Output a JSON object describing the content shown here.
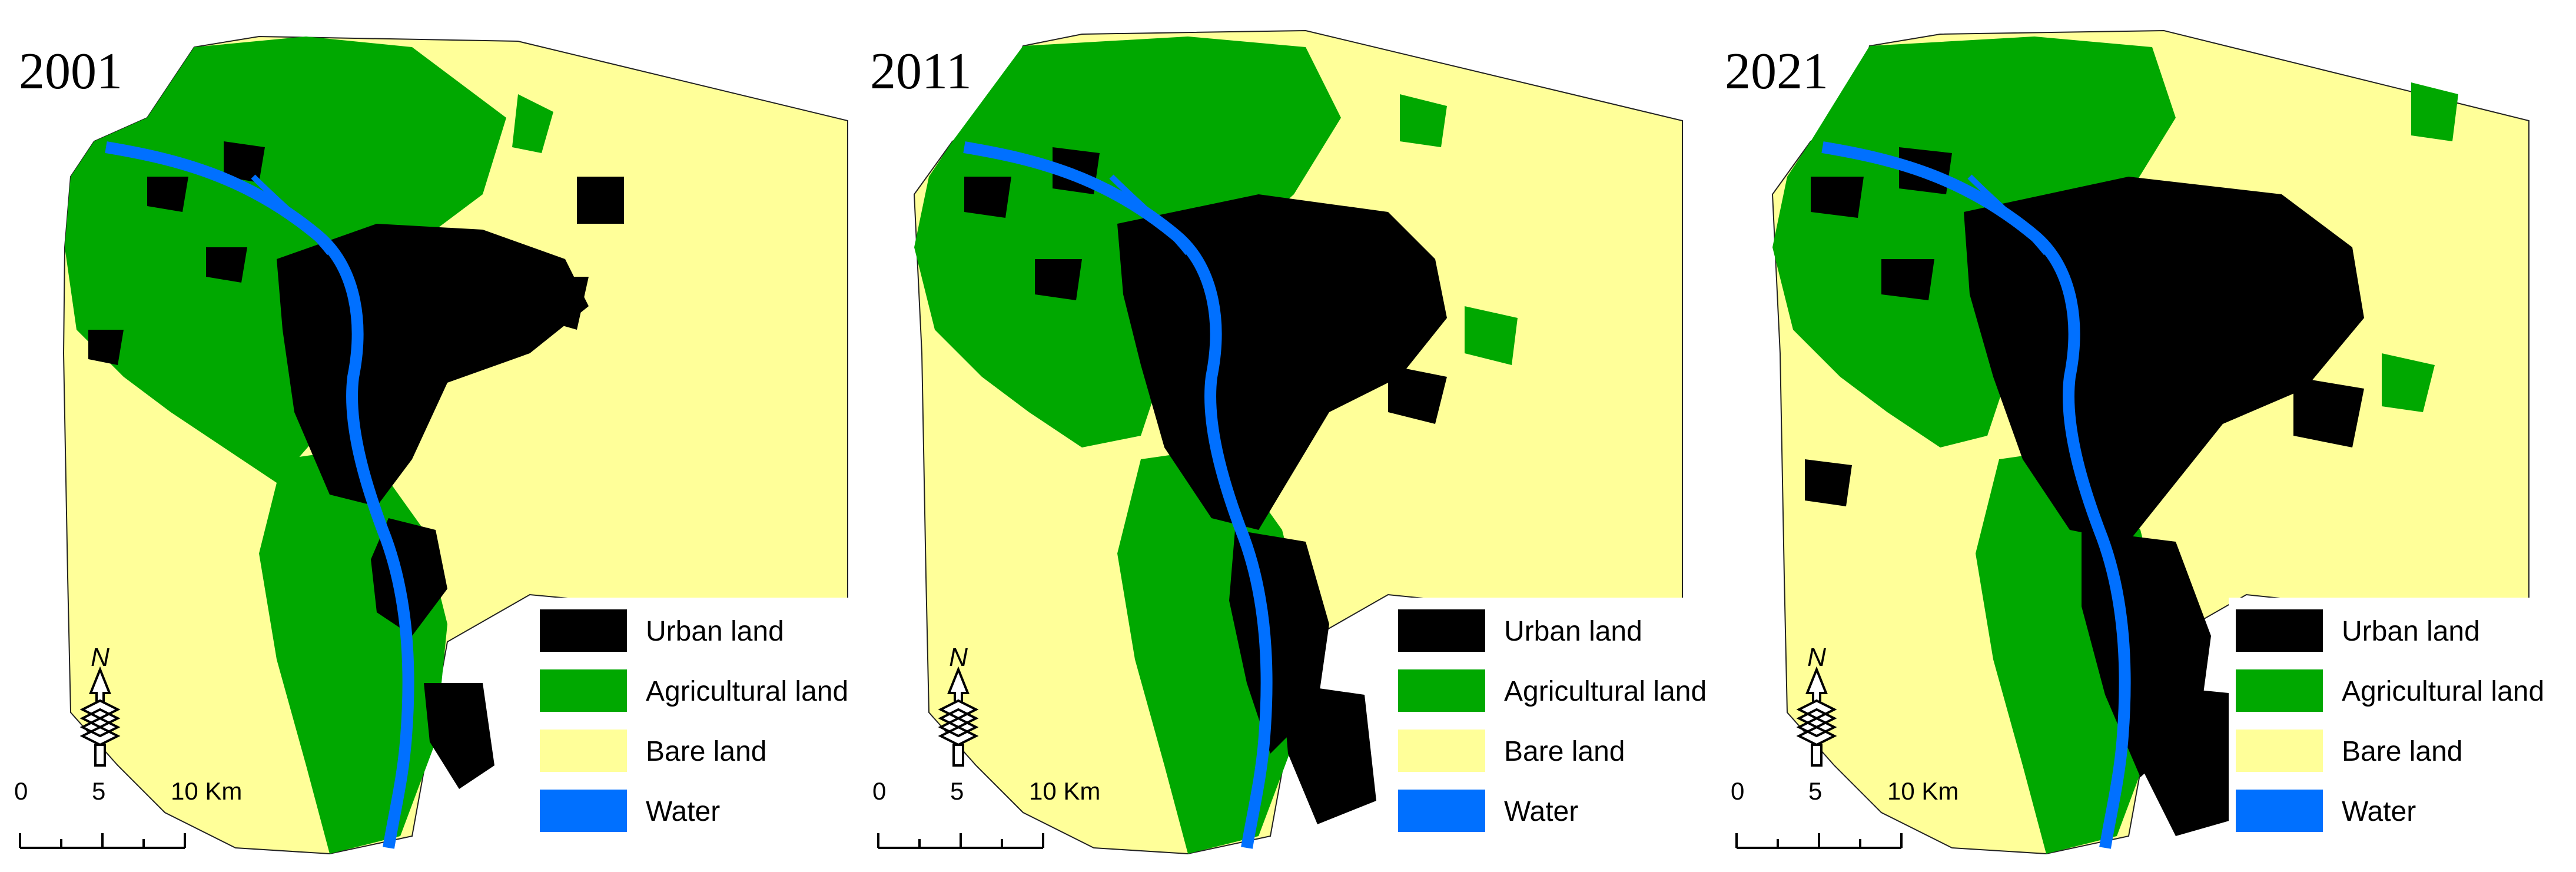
{
  "panels": [
    {
      "year": "2001"
    },
    {
      "year": "2011"
    },
    {
      "year": "2021"
    }
  ],
  "legend": [
    {
      "label": "Urban land",
      "color": "#000000"
    },
    {
      "label": "Agricultural land",
      "color": "#00a800"
    },
    {
      "label": "Bare land",
      "color": "#ffff99"
    },
    {
      "label": "Water",
      "color": "#0070ff"
    }
  ],
  "north_label": "N",
  "scale": {
    "tick0": "0",
    "tick1": "5",
    "tick2": "10 Km"
  },
  "icons": {
    "north_arrow": "north-arrow-icon"
  }
}
